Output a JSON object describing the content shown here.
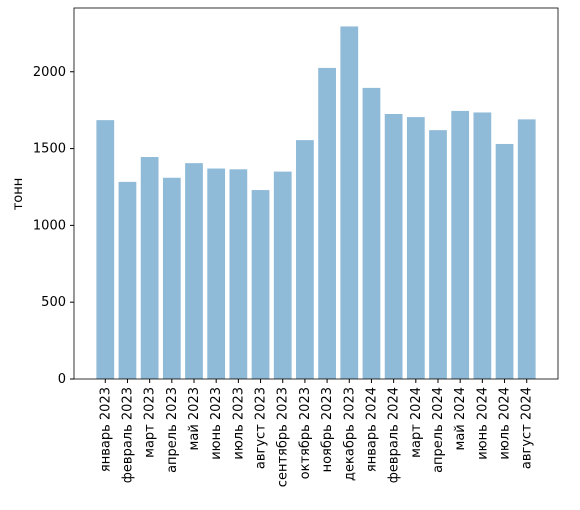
{
  "chart_data": {
    "type": "bar",
    "y_label": "тонн",
    "categories": [
      "январь 2023",
      "февраль 2023",
      "март 2023",
      "апрель 2023",
      "май 2023",
      "июнь 2023",
      "июль 2023",
      "август 2023",
      "сентябрь 2023",
      "октябрь 2023",
      "ноябрь 2023",
      "декабрь 2023",
      "январь 2024",
      "февраль 2024",
      "март 2024",
      "апрель 2024",
      "май 2024",
      "июнь 2024",
      "июль 2024",
      "август 2024"
    ],
    "values": [
      1685,
      1283,
      1445,
      1310,
      1405,
      1370,
      1365,
      1230,
      1350,
      1555,
      2025,
      2295,
      1895,
      1725,
      1705,
      1620,
      1745,
      1735,
      1530,
      1690
    ],
    "color": "#8fbbd9",
    "ylim": [
      0,
      2415
    ],
    "yticks": [
      0,
      500,
      1000,
      1500,
      2000
    ]
  }
}
